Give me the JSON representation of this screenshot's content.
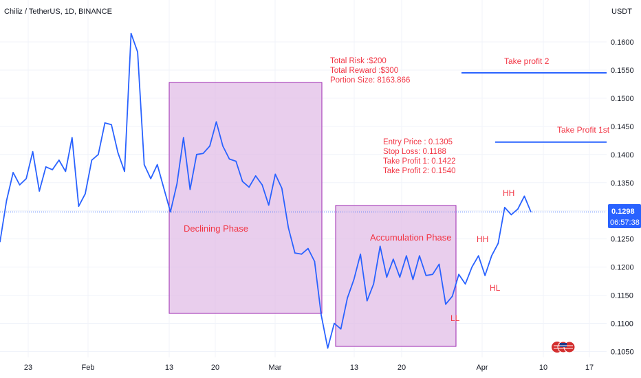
{
  "header": {
    "symbol_title": "Chiliz / TetherUS, 1D, BINANCE"
  },
  "axis": {
    "currency_label": "USDT"
  },
  "price_tag": {
    "price": "0.1298",
    "countdown": "06:57:38"
  },
  "colors": {
    "line": "#2962ff",
    "annotation": "#f23645",
    "zone_fill": "#e1bee7",
    "zone_border": "#9c27b0",
    "current_price": "#2962ff"
  },
  "annotations": {
    "risk_lines": [
      "Total Risk :$200",
      "Total Reward :$300",
      "Portion Size: 8163.866"
    ],
    "entry_lines": [
      "Entry Price : 0.1305",
      "Stop Loss: 0.1188",
      "Take Profit 1: 0.1422",
      "Take Profit 2: 0.1540"
    ],
    "take_profit_2": "Take profit 2",
    "take_profit_1": "Take Profit 1st",
    "declining_phase": "Declining Phase",
    "accumulation_phase": "Accumulation Phase",
    "hh_1": "HH",
    "hh_2": "HH",
    "hl": "HL",
    "ll": "LL"
  },
  "chart_data": {
    "type": "line",
    "title": "Chiliz / TetherUS, 1D, BINANCE",
    "ylabel": "USDT",
    "ylim": [
      0.1035,
      0.1665
    ],
    "y_ticks": [
      "0.1600",
      "0.1550",
      "0.1500",
      "0.1450",
      "0.1400",
      "0.1350",
      "0.1300",
      "0.1250",
      "0.1200",
      "0.1150",
      "0.1100",
      "0.1050"
    ],
    "x_ticks": [
      "23",
      "Feb",
      "13",
      "20",
      "Mar",
      "13",
      "20",
      "Apr",
      "10",
      "17"
    ],
    "current_price": 0.1298,
    "series": [
      {
        "values": [
          0.1245,
          0.1318,
          0.1368,
          0.1346,
          0.1357,
          0.1405,
          0.1335,
          0.1378,
          0.1373,
          0.139,
          0.137,
          0.143,
          0.1308,
          0.133,
          0.139,
          0.14,
          0.1456,
          0.1453,
          0.1403,
          0.137,
          0.1615,
          0.1582,
          0.1382,
          0.1357,
          0.1382,
          0.134,
          0.1298,
          0.1348,
          0.143,
          0.1338,
          0.14,
          0.1402,
          0.1415,
          0.1458,
          0.1415,
          0.1392,
          0.1388,
          0.1352,
          0.1342,
          0.1362,
          0.1346,
          0.131,
          0.1365,
          0.134,
          0.127,
          0.1225,
          0.1223,
          0.1233,
          0.121,
          0.1115,
          0.1056,
          0.11,
          0.109,
          0.1145,
          0.1178,
          0.1223,
          0.114,
          0.117,
          0.1237,
          0.1182,
          0.1214,
          0.1182,
          0.122,
          0.1178,
          0.122,
          0.1185,
          0.1187,
          0.1205,
          0.1134,
          0.1148,
          0.1187,
          0.117,
          0.12,
          0.122,
          0.1185,
          0.122,
          0.1242,
          0.1306,
          0.1293,
          0.1303,
          0.1326,
          0.1298
        ]
      }
    ],
    "levels": {
      "entry": 0.1305,
      "stop_loss": 0.1188,
      "take_profit_1": 0.1422,
      "take_profit_2": 0.154
    }
  }
}
